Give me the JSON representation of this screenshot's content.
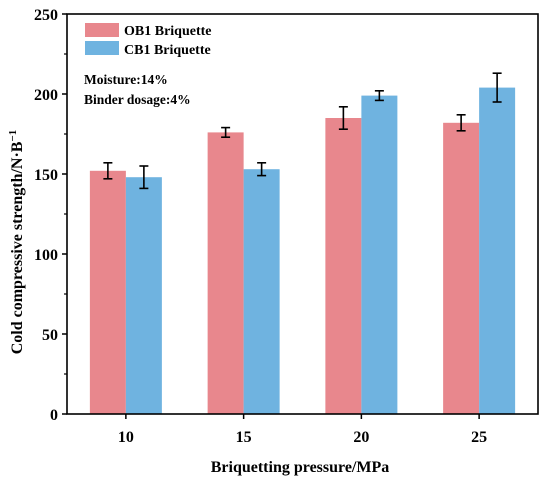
{
  "chart_data": {
    "type": "bar",
    "xlabel": "Briquetting pressure/MPa",
    "ylabel": "Cold compressive strength/N·B",
    "ylabel_sup": "−1",
    "categories": [
      "10",
      "15",
      "20",
      "25"
    ],
    "ylim": [
      0,
      250
    ],
    "yticks": [
      0,
      50,
      100,
      150,
      200,
      250
    ],
    "grid": false,
    "legend_position": "top-left",
    "annotations": [
      "Moisture:14%",
      "Binder dosage:4%"
    ],
    "series": [
      {
        "name": "OB1 Briquette",
        "color": "#e8878d",
        "values": [
          152,
          176,
          185,
          182
        ],
        "errors": [
          5,
          3,
          7,
          5
        ]
      },
      {
        "name": "CB1 Briquette",
        "color": "#6fb3e0",
        "values": [
          148,
          153,
          199,
          204
        ],
        "errors": [
          7,
          4,
          3,
          9
        ]
      }
    ]
  }
}
